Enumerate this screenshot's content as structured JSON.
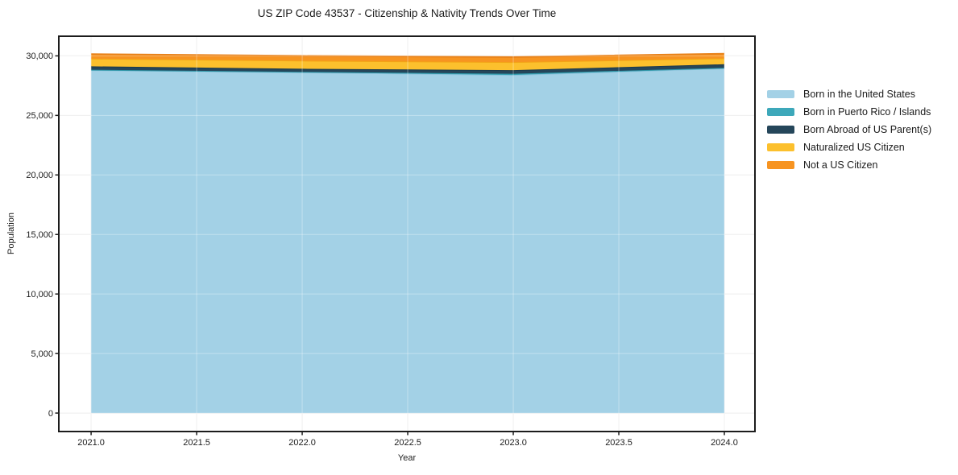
{
  "figure": {
    "background": "#ffffff",
    "frame_color": "#1c1c1c",
    "grid_color": "#e8e8e8",
    "grid_overlay_color": "rgba(255,255,255,0.35)"
  },
  "chart_data": {
    "type": "area",
    "stacked": true,
    "title": "US ZIP Code 43537 - Citizenship & Nativity Trends Over Time",
    "xlabel": "Year",
    "ylabel": "Population",
    "x": [
      2021,
      2022,
      2023,
      2024
    ],
    "series": [
      {
        "name": "Born in the United States",
        "color": "#a3d1e6",
        "edge_color": "#8cc3dc",
        "values": [
          28800,
          28620,
          28400,
          28960
        ]
      },
      {
        "name": "Born in Puerto Rico / Islands",
        "color": "#3da8ba",
        "edge_color": "#2f97a8",
        "values": [
          40,
          40,
          100,
          40
        ]
      },
      {
        "name": "Born Abroad of US Parent(s)",
        "color": "#25465a",
        "edge_color": "#1d3a4c",
        "values": [
          280,
          260,
          300,
          300
        ]
      },
      {
        "name": "Naturalized US Citizen",
        "color": "#fcc02d",
        "edge_color": "#f2a416",
        "values": [
          650,
          680,
          680,
          500
        ]
      },
      {
        "name": "Not a US Citizen",
        "color": "#f79421",
        "edge_color": "#e8821a",
        "values": [
          370,
          400,
          420,
          380
        ]
      }
    ],
    "totals": [
      30140,
      30000,
      29900,
      30180
    ],
    "xticks": {
      "values": [
        2021.0,
        2021.5,
        2022.0,
        2022.5,
        2023.0,
        2023.5,
        2024.0
      ],
      "labels": [
        "2021.0",
        "2021.5",
        "2022.0",
        "2022.5",
        "2023.0",
        "2023.5",
        "2024.0"
      ]
    },
    "yticks": {
      "values": [
        0,
        5000,
        10000,
        15000,
        20000,
        25000,
        30000
      ],
      "labels": [
        "0",
        "5,000",
        "10,000",
        "15,000",
        "20,000",
        "25,000",
        "30,000"
      ]
    },
    "xlim": [
      2020.847,
      2024.145
    ],
    "ylim": [
      -1550,
      31650
    ],
    "grid": true,
    "legend_position": "right-outside"
  }
}
